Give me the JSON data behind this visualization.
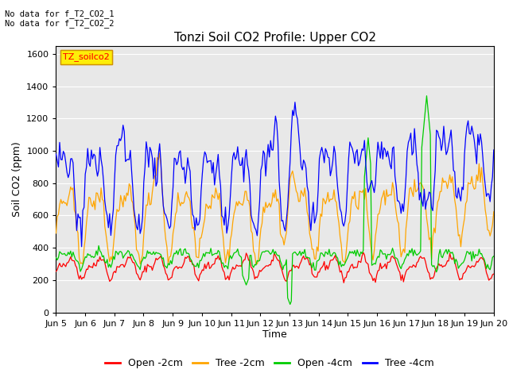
{
  "title": "Tonzi Soil CO2 Profile: Upper CO2",
  "ylabel": "Soil CO2 (ppm)",
  "xlabel": "Time",
  "header_text": "No data for f_T2_CO2_1\nNo data for f_T2_CO2_2",
  "legend_label": "TZ_soilco2",
  "legend_entries": [
    "Open -2cm",
    "Tree -2cm",
    "Open -4cm",
    "Tree -4cm"
  ],
  "line_colors": [
    "#ff0000",
    "#ffa500",
    "#00cc00",
    "#0000ff"
  ],
  "ylim": [
    0,
    1650
  ],
  "yticks": [
    0,
    200,
    400,
    600,
    800,
    1000,
    1200,
    1400,
    1600
  ],
  "bg_color": "#e8e8e8",
  "grid_color": "#ffffff",
  "figsize": [
    6.4,
    4.8
  ],
  "dpi": 100
}
